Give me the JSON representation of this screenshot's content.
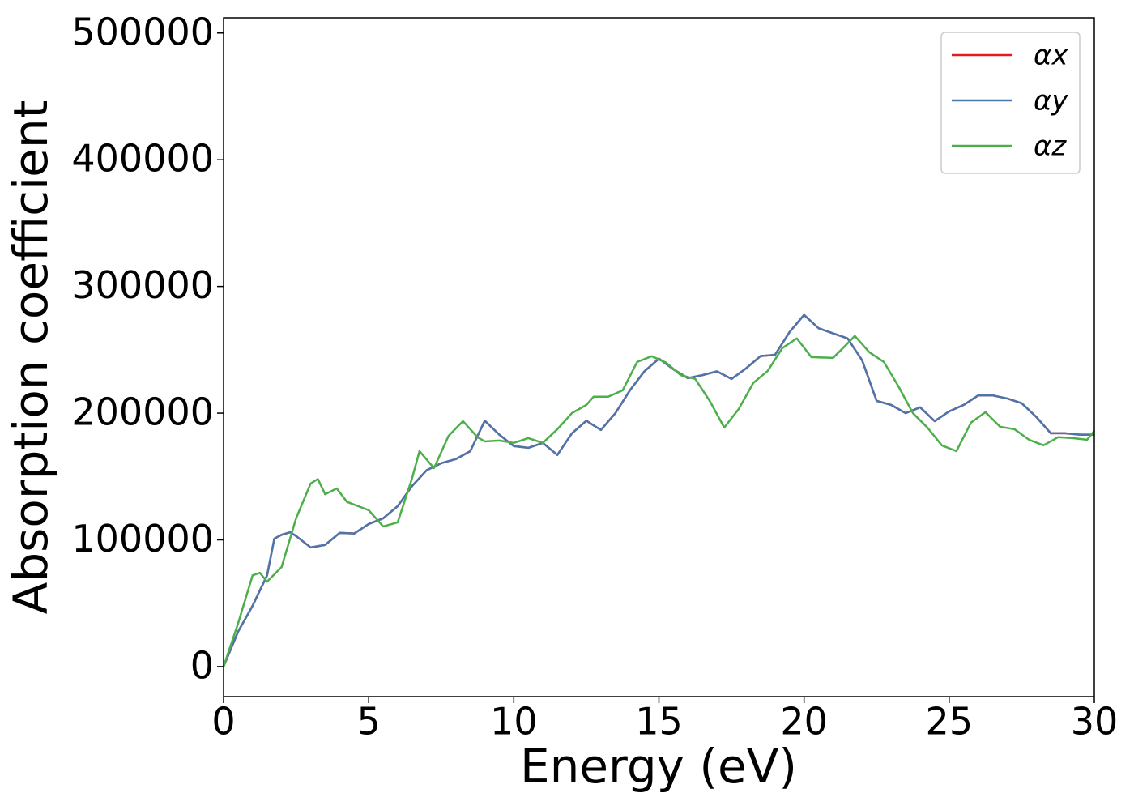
{
  "chart_data": {
    "type": "line",
    "xlabel": "Energy (eV)",
    "ylabel": "Absorption coefficient",
    "xlim": [
      0,
      30
    ],
    "xticks": [
      0,
      5,
      10,
      15,
      20,
      25,
      30
    ],
    "ylim": [
      -23700,
      512000
    ],
    "yticks": [
      0,
      100000,
      200000,
      300000,
      400000,
      500000
    ],
    "grid": false,
    "legend": "upper right",
    "series": [
      {
        "name": "αx",
        "color": "#e41a1c",
        "x": [
          0,
          0.5,
          1,
          1.5,
          1.75,
          2,
          2.3,
          2.5,
          3,
          3.5,
          4,
          4.5,
          5,
          5.5,
          6,
          6.5,
          7,
          7.5,
          8,
          8.5,
          9,
          9.5,
          10,
          10.5,
          11,
          11.5,
          12,
          12.5,
          13,
          13.5,
          14,
          14.5,
          15,
          15.5,
          16,
          16.5,
          17,
          17.5,
          18,
          18.5,
          19,
          19.5,
          20,
          20.5,
          21,
          21.5,
          22,
          22.5,
          23,
          23.5,
          24,
          24.5,
          25,
          25.5,
          26,
          26.5,
          27,
          27.5,
          28,
          28.5,
          29,
          29.5,
          30
        ],
        "values": [
          0,
          27500,
          48000,
          72000,
          101000,
          104000,
          106000,
          103000,
          94000,
          96000,
          105500,
          105000,
          112500,
          117000,
          126600,
          142600,
          155000,
          160500,
          163700,
          170000,
          194000,
          183000,
          174000,
          172600,
          176500,
          167000,
          184000,
          194000,
          186700,
          200000,
          218000,
          233000,
          243000,
          234600,
          227600,
          230000,
          233000,
          227000,
          235300,
          245000,
          246000,
          264000,
          277500,
          267000,
          263000,
          259000,
          241700,
          209700,
          206500,
          200000,
          204600,
          193700,
          201400,
          206500,
          214000,
          214000,
          211600,
          207800,
          197000,
          184100,
          184100,
          183000,
          183000
        ]
      },
      {
        "name": "αy",
        "color": "#4a76ab",
        "x": [
          0,
          0.5,
          1,
          1.5,
          1.75,
          2,
          2.3,
          2.5,
          3,
          3.5,
          4,
          4.5,
          5,
          5.5,
          6,
          6.5,
          7,
          7.5,
          8,
          8.5,
          9,
          9.5,
          10,
          10.5,
          11,
          11.5,
          12,
          12.5,
          13,
          13.5,
          14,
          14.5,
          15,
          15.5,
          16,
          16.5,
          17,
          17.5,
          18,
          18.5,
          19,
          19.5,
          20,
          20.5,
          21,
          21.5,
          22,
          22.5,
          23,
          23.5,
          24,
          24.5,
          25,
          25.5,
          26,
          26.5,
          27,
          27.5,
          28,
          28.5,
          29,
          29.5,
          30
        ],
        "values": [
          0,
          27500,
          48000,
          72000,
          101000,
          104000,
          106000,
          103000,
          94000,
          96000,
          105500,
          105000,
          112500,
          117000,
          126600,
          142600,
          155000,
          160500,
          163700,
          170000,
          194000,
          183000,
          174000,
          172600,
          176500,
          167000,
          184000,
          194000,
          186700,
          200000,
          218000,
          233000,
          243000,
          234600,
          227600,
          230000,
          233000,
          227000,
          235300,
          245000,
          246000,
          264000,
          277500,
          267000,
          263000,
          259000,
          241700,
          209700,
          206500,
          200000,
          204600,
          193700,
          201400,
          206500,
          214000,
          214000,
          211600,
          207800,
          197000,
          184100,
          184100,
          183000,
          183000
        ]
      },
      {
        "name": "αz",
        "color": "#4daf4a",
        "x": [
          0,
          0.5,
          1,
          1.25,
          1.5,
          2,
          2.5,
          3,
          3.25,
          3.5,
          3.9,
          4.25,
          5,
          5.5,
          6,
          6.5,
          6.75,
          7.25,
          7.75,
          8.25,
          8.75,
          9,
          9.5,
          10,
          10.5,
          11,
          11.5,
          12,
          12.5,
          12.75,
          13.25,
          13.75,
          14.25,
          14.75,
          15.25,
          15.75,
          16.25,
          16.75,
          17.25,
          17.75,
          18.25,
          18.75,
          19.25,
          19.75,
          20.25,
          21,
          21.25,
          21.75,
          22.25,
          22.75,
          23.25,
          23.75,
          24.25,
          24.75,
          25.25,
          25.75,
          26.25,
          26.75,
          27.25,
          27.75,
          28.25,
          28.75,
          29.25,
          29.75,
          30
        ],
        "values": [
          0,
          34000,
          72000,
          74000,
          67000,
          78600,
          117000,
          144500,
          148000,
          136000,
          140600,
          130000,
          123400,
          110600,
          113800,
          149000,
          170000,
          156600,
          182000,
          193700,
          181000,
          177700,
          178400,
          176500,
          180300,
          176500,
          187300,
          200000,
          206500,
          213000,
          213000,
          218000,
          240400,
          244900,
          239800,
          230000,
          227000,
          209700,
          188600,
          203300,
          223800,
          233400,
          251300,
          259000,
          244200,
          243600,
          249300,
          260900,
          248000,
          240400,
          221200,
          200000,
          188600,
          174500,
          170000,
          192500,
          200800,
          189300,
          187300,
          179000,
          174600,
          181000,
          180300,
          179000,
          186000
        ]
      }
    ]
  }
}
